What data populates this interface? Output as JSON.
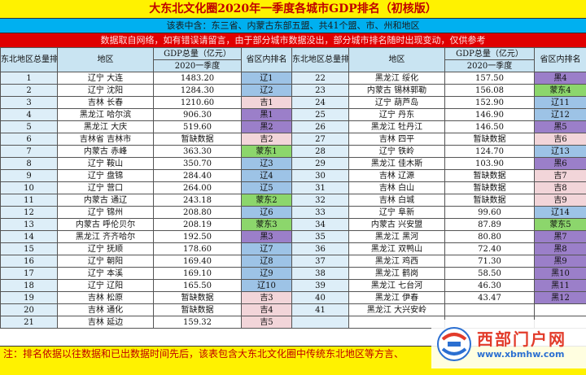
{
  "title": "大东北文化圈2020年一季度各城市GDP排名（初核版）",
  "scope": "该表中含：东三省、内蒙古东部五盟、共41个盟、市、州和地区",
  "disclaimer": "数据取自网络，如有错误请留言，由于部分城市数据没出，部分城市排名随时出现变动，仅供参考",
  "headers": {
    "rank": "东北地区总量排名",
    "region": "地区",
    "gdp_top": "GDP总量（亿元）",
    "gdp_sub": "2020一季度",
    "prov_rank": "省区内排名"
  },
  "colors": {
    "liaoning": "#9dc3e6",
    "jilin": "#f2d5d9",
    "heilongjiang": "#9b7fc9",
    "neimenggu": "#8cd66c",
    "yellow": "#fff200",
    "blue": "#00b0f0",
    "red": "#e00000"
  },
  "rows": [
    {
      "rank": "1",
      "region": "辽宁 大连",
      "gdp": "1483.20",
      "prov": "辽1",
      "p": "liaoning"
    },
    {
      "rank": "2",
      "region": "辽宁 沈阳",
      "gdp": "1284.30",
      "prov": "辽2",
      "p": "liaoning"
    },
    {
      "rank": "3",
      "region": "吉林 长春",
      "gdp": "1210.60",
      "prov": "吉1",
      "p": "jilin"
    },
    {
      "rank": "4",
      "region": "黑龙江 哈尔滨",
      "gdp": "906.30",
      "prov": "黑1",
      "p": "heilongjiang"
    },
    {
      "rank": "5",
      "region": "黑龙江 大庆",
      "gdp": "519.60",
      "prov": "黑2",
      "p": "heilongjiang"
    },
    {
      "rank": "6",
      "region": "吉林省 吉林市",
      "gdp": "暂缺数据",
      "prov": "吉2",
      "p": "jilin"
    },
    {
      "rank": "7",
      "region": "内蒙古 赤峰",
      "gdp": "363.30",
      "prov": "蒙东1",
      "p": "neimenggu"
    },
    {
      "rank": "8",
      "region": "辽宁 鞍山",
      "gdp": "350.70",
      "prov": "辽3",
      "p": "liaoning"
    },
    {
      "rank": "9",
      "region": "辽宁 盘锦",
      "gdp": "284.40",
      "prov": "辽4",
      "p": "liaoning"
    },
    {
      "rank": "10",
      "region": "辽宁 营口",
      "gdp": "264.00",
      "prov": "辽5",
      "p": "liaoning"
    },
    {
      "rank": "11",
      "region": "内蒙古 通辽",
      "gdp": "243.18",
      "prov": "蒙东2",
      "p": "neimenggu"
    },
    {
      "rank": "12",
      "region": "辽宁 锦州",
      "gdp": "208.80",
      "prov": "辽6",
      "p": "liaoning"
    },
    {
      "rank": "13",
      "region": "内蒙古 呼伦贝尔",
      "gdp": "208.19",
      "prov": "蒙东3",
      "p": "neimenggu"
    },
    {
      "rank": "14",
      "region": "黑龙江 齐齐哈尔",
      "gdp": "192.50",
      "prov": "黑3",
      "p": "heilongjiang"
    },
    {
      "rank": "15",
      "region": "辽宁 抚顺",
      "gdp": "178.60",
      "prov": "辽7",
      "p": "liaoning"
    },
    {
      "rank": "16",
      "region": "辽宁 朝阳",
      "gdp": "169.40",
      "prov": "辽8",
      "p": "liaoning"
    },
    {
      "rank": "17",
      "region": "辽宁 本溪",
      "gdp": "169.10",
      "prov": "辽9",
      "p": "liaoning"
    },
    {
      "rank": "18",
      "region": "辽宁 辽阳",
      "gdp": "165.50",
      "prov": "辽10",
      "p": "liaoning"
    },
    {
      "rank": "19",
      "region": "吉林 松原",
      "gdp": "暂缺数据",
      "prov": "吉3",
      "p": "jilin"
    },
    {
      "rank": "20",
      "region": "吉林 通化",
      "gdp": "暂缺数据",
      "prov": "吉4",
      "p": "jilin"
    },
    {
      "rank": "21",
      "region": "吉林 延边",
      "gdp": "159.32",
      "prov": "吉5",
      "p": "jilin"
    },
    {
      "rank": "22",
      "region": "黑龙江 绥化",
      "gdp": "157.50",
      "prov": "黑4",
      "p": "heilongjiang"
    },
    {
      "rank": "23",
      "region": "内蒙古 锡林郭勒",
      "gdp": "156.08",
      "prov": "蒙东4",
      "p": "neimenggu"
    },
    {
      "rank": "24",
      "region": "辽宁 葫芦岛",
      "gdp": "152.90",
      "prov": "辽11",
      "p": "liaoning"
    },
    {
      "rank": "25",
      "region": "辽宁 丹东",
      "gdp": "146.90",
      "prov": "辽12",
      "p": "liaoning"
    },
    {
      "rank": "26",
      "region": "黑龙江 牡丹江",
      "gdp": "146.50",
      "prov": "黑5",
      "p": "heilongjiang"
    },
    {
      "rank": "27",
      "region": "吉林 四平",
      "gdp": "暂缺数据",
      "prov": "吉6",
      "p": "jilin"
    },
    {
      "rank": "28",
      "region": "辽宁 铁岭",
      "gdp": "124.70",
      "prov": "辽13",
      "p": "liaoning"
    },
    {
      "rank": "29",
      "region": "黑龙江 佳木斯",
      "gdp": "103.90",
      "prov": "黑6",
      "p": "heilongjiang"
    },
    {
      "rank": "30",
      "region": "吉林 辽源",
      "gdp": "暂缺数据",
      "prov": "吉7",
      "p": "jilin"
    },
    {
      "rank": "31",
      "region": "吉林 白山",
      "gdp": "暂缺数据",
      "prov": "吉8",
      "p": "jilin"
    },
    {
      "rank": "32",
      "region": "吉林 白城",
      "gdp": "暂缺数据",
      "prov": "吉9",
      "p": "jilin"
    },
    {
      "rank": "33",
      "region": "辽宁 阜新",
      "gdp": "99.60",
      "prov": "辽14",
      "p": "liaoning"
    },
    {
      "rank": "34",
      "region": "内蒙古 兴安盟",
      "gdp": "87.89",
      "prov": "蒙东5",
      "p": "neimenggu"
    },
    {
      "rank": "35",
      "region": "黑龙江 黑河",
      "gdp": "80.80",
      "prov": "黑7",
      "p": "heilongjiang"
    },
    {
      "rank": "36",
      "region": "黑龙江 双鸭山",
      "gdp": "72.40",
      "prov": "黑8",
      "p": "heilongjiang"
    },
    {
      "rank": "37",
      "region": "黑龙江 鸡西",
      "gdp": "71.30",
      "prov": "黑9",
      "p": "heilongjiang"
    },
    {
      "rank": "38",
      "region": "黑龙江 鹤岗",
      "gdp": "58.50",
      "prov": "黑10",
      "p": "heilongjiang"
    },
    {
      "rank": "39",
      "region": "黑龙江 七台河",
      "gdp": "46.30",
      "prov": "黑11",
      "p": "heilongjiang"
    },
    {
      "rank": "40",
      "region": "黑龙江 伊春",
      "gdp": "43.47",
      "prov": "黑12",
      "p": "heilongjiang"
    },
    {
      "rank": "41",
      "region": "黑龙江 大兴安岭",
      "gdp": "",
      "prov": "",
      "p": "heilongjiang"
    },
    {
      "rank": "",
      "region": "",
      "gdp": "",
      "prov": "",
      "p": "none"
    }
  ],
  "footnote": "注：排名依据以往数据和已出数据时间先后，该表包含大东北文化圈中传统东北地区等方言、",
  "watermark": {
    "name": "西部门户网",
    "url": "www.xbmhw.com"
  }
}
